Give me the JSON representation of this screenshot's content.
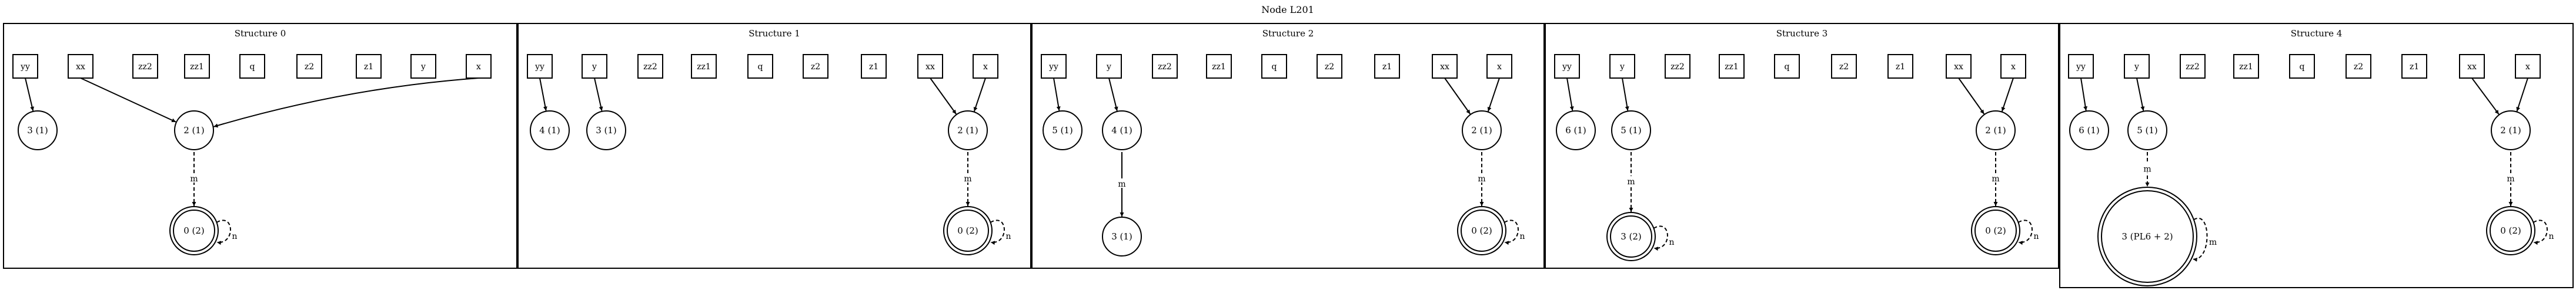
{
  "title": "Node L201",
  "panels": [
    {
      "label": "Structure 0",
      "vars": [
        "yy",
        "xx",
        "zz2",
        "zz1",
        "q",
        "z2",
        "z1",
        "y",
        "x"
      ],
      "nodes": [
        {
          "id": "n3",
          "label": "3 (1)",
          "kind": "single"
        },
        {
          "id": "n2",
          "label": "2 (1)",
          "kind": "single"
        },
        {
          "id": "n0",
          "label": "0 (2)",
          "kind": "double"
        }
      ],
      "edges": [
        {
          "from": "var:yy",
          "to": "n3",
          "style": "solid",
          "label": ""
        },
        {
          "from": "var:xx",
          "to": "n2",
          "style": "solid",
          "label": ""
        },
        {
          "from": "var:x",
          "to": "n2",
          "style": "solid",
          "label": ""
        },
        {
          "from": "n2",
          "to": "n0",
          "style": "dashed",
          "label": "m"
        },
        {
          "from": "n0",
          "to": "n0",
          "style": "dashed",
          "label": "n"
        }
      ]
    },
    {
      "label": "Structure 1",
      "vars": [
        "yy",
        "y",
        "zz2",
        "zz1",
        "q",
        "z2",
        "z1",
        "xx",
        "x"
      ],
      "nodes": [
        {
          "id": "n4",
          "label": "4 (1)",
          "kind": "single"
        },
        {
          "id": "n3",
          "label": "3 (1)",
          "kind": "single"
        },
        {
          "id": "n2",
          "label": "2 (1)",
          "kind": "single"
        },
        {
          "id": "n0",
          "label": "0 (2)",
          "kind": "double"
        }
      ],
      "edges": [
        {
          "from": "var:yy",
          "to": "n4",
          "style": "solid",
          "label": ""
        },
        {
          "from": "var:y",
          "to": "n3",
          "style": "solid",
          "label": ""
        },
        {
          "from": "var:xx",
          "to": "n2",
          "style": "solid",
          "label": ""
        },
        {
          "from": "var:x",
          "to": "n2",
          "style": "solid",
          "label": ""
        },
        {
          "from": "n2",
          "to": "n0",
          "style": "dashed",
          "label": "m"
        },
        {
          "from": "n0",
          "to": "n0",
          "style": "dashed",
          "label": "n"
        }
      ]
    },
    {
      "label": "Structure 2",
      "vars": [
        "yy",
        "y",
        "zz2",
        "zz1",
        "q",
        "z2",
        "z1",
        "xx",
        "x"
      ],
      "nodes": [
        {
          "id": "n5",
          "label": "5 (1)",
          "kind": "single"
        },
        {
          "id": "n4",
          "label": "4 (1)",
          "kind": "single"
        },
        {
          "id": "n3",
          "label": "3 (1)",
          "kind": "single"
        },
        {
          "id": "n2",
          "label": "2 (1)",
          "kind": "single"
        },
        {
          "id": "n0",
          "label": "0 (2)",
          "kind": "double"
        }
      ],
      "edges": [
        {
          "from": "var:yy",
          "to": "n5",
          "style": "solid",
          "label": ""
        },
        {
          "from": "var:y",
          "to": "n4",
          "style": "solid",
          "label": ""
        },
        {
          "from": "n4",
          "to": "n3",
          "style": "solid",
          "label": "m"
        },
        {
          "from": "var:xx",
          "to": "n2",
          "style": "solid",
          "label": ""
        },
        {
          "from": "var:x",
          "to": "n2",
          "style": "solid",
          "label": ""
        },
        {
          "from": "n2",
          "to": "n0",
          "style": "dashed",
          "label": "m"
        },
        {
          "from": "n0",
          "to": "n0",
          "style": "dashed",
          "label": "n"
        }
      ]
    },
    {
      "label": "Structure 3",
      "vars": [
        "yy",
        "y",
        "zz2",
        "zz1",
        "q",
        "z2",
        "z1",
        "xx",
        "x"
      ],
      "nodes": [
        {
          "id": "n6",
          "label": "6 (1)",
          "kind": "single"
        },
        {
          "id": "n5",
          "label": "5 (1)",
          "kind": "single"
        },
        {
          "id": "n3",
          "label": "3 (2)",
          "kind": "double"
        },
        {
          "id": "n2",
          "label": "2 (1)",
          "kind": "single"
        },
        {
          "id": "n0",
          "label": "0 (2)",
          "kind": "double"
        }
      ],
      "edges": [
        {
          "from": "var:yy",
          "to": "n6",
          "style": "solid",
          "label": ""
        },
        {
          "from": "var:y",
          "to": "n5",
          "style": "solid",
          "label": ""
        },
        {
          "from": "n5",
          "to": "n3",
          "style": "dashed",
          "label": "m"
        },
        {
          "from": "n3",
          "to": "n3",
          "style": "dashed",
          "label": "n"
        },
        {
          "from": "var:xx",
          "to": "n2",
          "style": "solid",
          "label": ""
        },
        {
          "from": "var:x",
          "to": "n2",
          "style": "solid",
          "label": ""
        },
        {
          "from": "n2",
          "to": "n0",
          "style": "dashed",
          "label": "m"
        },
        {
          "from": "n0",
          "to": "n0",
          "style": "dashed",
          "label": "n"
        }
      ]
    },
    {
      "label": "Structure 4",
      "vars": [
        "yy",
        "y",
        "zz2",
        "zz1",
        "q",
        "z2",
        "z1",
        "xx",
        "x"
      ],
      "nodes": [
        {
          "id": "n6",
          "label": "6 (1)",
          "kind": "single"
        },
        {
          "id": "n5",
          "label": "5 (1)",
          "kind": "single"
        },
        {
          "id": "n3",
          "label": "3 (PL6 + 2)",
          "kind": "double"
        },
        {
          "id": "n2",
          "label": "2 (1)",
          "kind": "single"
        },
        {
          "id": "n0",
          "label": "0 (2)",
          "kind": "double"
        }
      ],
      "edges": [
        {
          "from": "var:yy",
          "to": "n6",
          "style": "solid",
          "label": ""
        },
        {
          "from": "var:y",
          "to": "n5",
          "style": "solid",
          "label": ""
        },
        {
          "from": "n5",
          "to": "n3",
          "style": "dashed",
          "label": "m"
        },
        {
          "from": "n3",
          "to": "n3",
          "style": "dashed",
          "label": "m"
        },
        {
          "from": "var:xx",
          "to": "n2",
          "style": "solid",
          "label": ""
        },
        {
          "from": "var:x",
          "to": "n2",
          "style": "solid",
          "label": ""
        },
        {
          "from": "n2",
          "to": "n0",
          "style": "dashed",
          "label": "m"
        },
        {
          "from": "n0",
          "to": "n0",
          "style": "dashed",
          "label": "n"
        }
      ]
    }
  ]
}
